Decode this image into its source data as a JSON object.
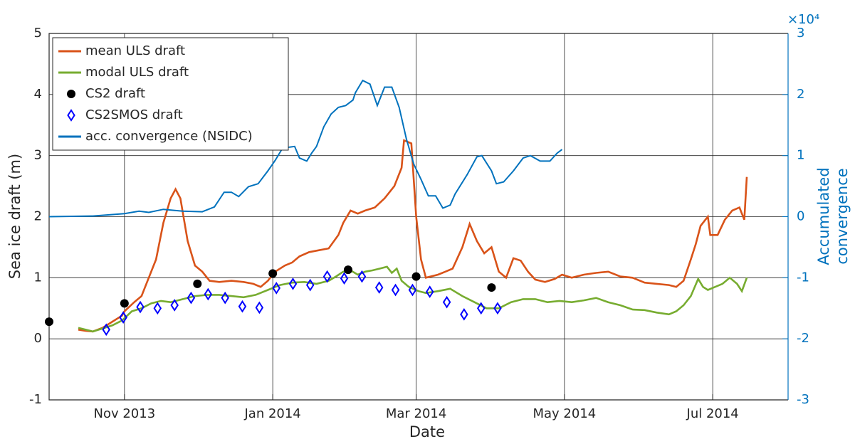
{
  "chart_data": {
    "type": "line",
    "xlabel": "Date",
    "ylabel": "Sea ice draft (m)",
    "y2label": [
      "Accumulated",
      "convergence"
    ],
    "y2_exponent": "×10⁴",
    "xlim": [
      0,
      304
    ],
    "xticks": [
      {
        "value": 31,
        "label": "Nov 2013"
      },
      {
        "value": 92,
        "label": "Jan 2014"
      },
      {
        "value": 151,
        "label": "Mar 2014"
      },
      {
        "value": 212,
        "label": "May 2014"
      },
      {
        "value": 273,
        "label": "Jul 2014"
      }
    ],
    "ylim": [
      -1,
      5
    ],
    "yticks": [
      -1,
      0,
      1,
      2,
      3,
      4,
      5
    ],
    "y2lim": [
      -30000,
      30000
    ],
    "y2ticks": [
      {
        "value": -30000,
        "label": "-3"
      },
      {
        "value": -20000,
        "label": "-2"
      },
      {
        "value": -10000,
        "label": "-1"
      },
      0,
      {
        "value": 10000,
        "label": "1"
      },
      {
        "value": 20000,
        "label": "2"
      },
      {
        "value": 30000,
        "label": "3"
      }
    ],
    "grid": true,
    "legend": "upper left",
    "y2color": "#0072bd",
    "series": [
      {
        "name": "mean ULS draft",
        "color": "#d95319",
        "mark": "line",
        "x": [
          12,
          15,
          18,
          22,
          26,
          30,
          31,
          35,
          38,
          41,
          44,
          47,
          50,
          52,
          54,
          57,
          60,
          63,
          66,
          70,
          75,
          80,
          84,
          87,
          90,
          93,
          97,
          100,
          103,
          107,
          111,
          115,
          119,
          121,
          124,
          127,
          130,
          134,
          138,
          142,
          145,
          146,
          149,
          151,
          153,
          155,
          160,
          163,
          166,
          170,
          173,
          176,
          179,
          182,
          185,
          188,
          191,
          194,
          197,
          200,
          204,
          208,
          211,
          215,
          220,
          225,
          230,
          235,
          240,
          245,
          250,
          255,
          258,
          261,
          264,
          266,
          268,
          271,
          272,
          275,
          278,
          281,
          284,
          286,
          287
        ],
        "values": [
          0.15,
          0.13,
          0.12,
          0.18,
          0.28,
          0.38,
          0.45,
          0.6,
          0.7,
          1.0,
          1.3,
          1.9,
          2.3,
          2.45,
          2.3,
          1.6,
          1.2,
          1.1,
          0.95,
          0.93,
          0.95,
          0.93,
          0.9,
          0.85,
          0.95,
          1.1,
          1.2,
          1.25,
          1.35,
          1.42,
          1.45,
          1.48,
          1.7,
          1.9,
          2.1,
          2.05,
          2.1,
          2.15,
          2.3,
          2.5,
          2.8,
          3.25,
          3.2,
          2.0,
          1.3,
          1.0,
          1.05,
          1.1,
          1.15,
          1.5,
          1.88,
          1.6,
          1.4,
          1.5,
          1.1,
          1.0,
          1.32,
          1.28,
          1.1,
          0.97,
          0.93,
          0.98,
          1.05,
          1.0,
          1.05,
          1.08,
          1.1,
          1.02,
          1.0,
          0.92,
          0.9,
          0.88,
          0.85,
          0.95,
          1.3,
          1.55,
          1.85,
          2.0,
          1.7,
          1.7,
          1.95,
          2.1,
          2.15,
          1.95,
          2.65
        ]
      },
      {
        "name": "modal ULS draft",
        "color": "#77ac30",
        "mark": "line",
        "x": [
          12,
          15,
          18,
          22,
          26,
          30,
          34,
          38,
          42,
          46,
          50,
          55,
          60,
          65,
          70,
          75,
          80,
          85,
          90,
          95,
          100,
          105,
          110,
          115,
          118,
          121,
          124,
          127,
          130,
          133,
          136,
          139,
          141,
          143,
          145,
          148,
          152,
          155,
          160,
          165,
          170,
          175,
          180,
          185,
          190,
          195,
          200,
          205,
          210,
          215,
          220,
          225,
          230,
          235,
          240,
          245,
          250,
          255,
          258,
          261,
          264,
          267,
          269,
          271,
          274,
          277,
          280,
          283,
          285,
          287
        ],
        "values": [
          0.18,
          0.15,
          0.12,
          0.17,
          0.22,
          0.3,
          0.45,
          0.5,
          0.58,
          0.62,
          0.6,
          0.65,
          0.7,
          0.72,
          0.72,
          0.7,
          0.68,
          0.72,
          0.8,
          0.88,
          0.92,
          0.93,
          0.9,
          0.95,
          1.02,
          1.1,
          1.12,
          1.05,
          1.1,
          1.12,
          1.15,
          1.18,
          1.08,
          1.15,
          0.95,
          0.85,
          0.78,
          0.75,
          0.78,
          0.82,
          0.7,
          0.6,
          0.5,
          0.5,
          0.6,
          0.65,
          0.65,
          0.6,
          0.62,
          0.6,
          0.63,
          0.67,
          0.6,
          0.55,
          0.48,
          0.47,
          0.43,
          0.4,
          0.45,
          0.55,
          0.7,
          0.98,
          0.85,
          0.8,
          0.85,
          0.9,
          1.0,
          0.9,
          0.78,
          1.0
        ]
      },
      {
        "name": "CS2 draft",
        "color": "#000000",
        "mark": "circle",
        "x": [
          0,
          31,
          61,
          92,
          123,
          151,
          182
        ],
        "values": [
          0.28,
          0.58,
          0.9,
          1.07,
          1.13,
          1.02,
          0.84
        ]
      },
      {
        "name": "CS2SMOS draft",
        "color": "#0000ff",
        "mark": "diamond",
        "x": [
          23.5,
          30.5,
          37.5,
          44.6,
          51.6,
          58.4,
          65.4,
          72.4,
          79.5,
          86.5,
          93.5,
          100.3,
          107.4,
          114.4,
          121.4,
          128.7,
          135.8,
          142.5,
          149.5,
          156.6,
          163.6,
          170.7,
          177.7,
          184.5
        ],
        "values": [
          0.15,
          0.35,
          0.52,
          0.5,
          0.55,
          0.67,
          0.73,
          0.67,
          0.53,
          0.51,
          0.83,
          0.9,
          0.88,
          1.02,
          0.99,
          1.02,
          0.84,
          0.8,
          0.8,
          0.77,
          0.6,
          0.4,
          0.5,
          0.5
        ]
      },
      {
        "name": "acc. convergence (NSIDC)",
        "color": "#0072bd",
        "mark": "line",
        "axis": "y2",
        "x": [
          0,
          18,
          31,
          37,
          41,
          47,
          55,
          63,
          68,
          72,
          75,
          78,
          82,
          86,
          90,
          93,
          96,
          99,
          101,
          103,
          106,
          108,
          110,
          113,
          116,
          119,
          122,
          125,
          126,
          129,
          132,
          135,
          138,
          141,
          144,
          147,
          150,
          153,
          156,
          159,
          162,
          165,
          167,
          172,
          176,
          178,
          182,
          184,
          187,
          191,
          195,
          198,
          202,
          206,
          209,
          211
        ],
        "values": [
          0,
          100,
          500,
          900,
          700,
          1200,
          900,
          800,
          1600,
          4000,
          4000,
          3300,
          4900,
          5400,
          7500,
          9200,
          11200,
          11400,
          11500,
          9600,
          9100,
          10400,
          11500,
          14700,
          16800,
          17900,
          18200,
          19100,
          20300,
          22300,
          21700,
          18200,
          21200,
          21200,
          17900,
          12700,
          8600,
          6100,
          3400,
          3400,
          1400,
          1900,
          3700,
          6900,
          9800,
          10000,
          7500,
          5400,
          5700,
          7500,
          9600,
          10000,
          9100,
          9100,
          10400,
          11000
        ]
      }
    ]
  }
}
